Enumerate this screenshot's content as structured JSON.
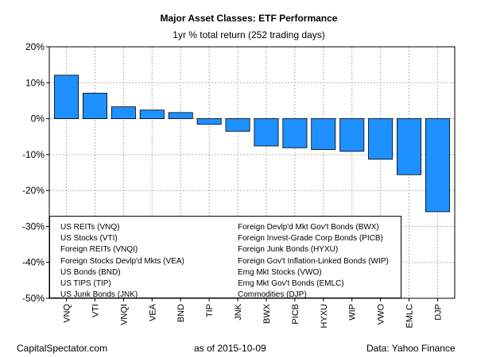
{
  "chart_data": {
    "type": "bar",
    "title": "Major Asset Classes: ETF Performance",
    "subtitle": "1yr % total return (252 trading days)",
    "categories": [
      "VNQ",
      "VTI",
      "VNQI",
      "VEA",
      "BND",
      "TIP",
      "JNK",
      "BWX",
      "PICB",
      "HYXU",
      "WIP",
      "VWO",
      "EMLC",
      "DJP"
    ],
    "values": [
      12.1,
      7.1,
      3.3,
      2.4,
      1.7,
      -1.6,
      -3.5,
      -7.6,
      -8.1,
      -8.6,
      -9.1,
      -11.3,
      -15.6,
      -25.9
    ],
    "ylim": [
      -50,
      20
    ],
    "yticks": [
      20,
      10,
      0,
      -10,
      -20,
      -30,
      -40,
      -50
    ],
    "ytick_labels": [
      "20%",
      "10%",
      "0%",
      "-10%",
      "-20%",
      "-30%",
      "-40%",
      "-50%"
    ],
    "bar_color": "#1E90FF",
    "grid": true,
    "legend_position": "bottom",
    "legend_left": [
      "US REITs (VNQ)",
      "US Stocks (VTI)",
      "Foreign REITs (VNQI)",
      "Foreign Stocks Devlp'd Mkts (VEA)",
      "US Bonds (BND)",
      "US TIPS (TIP)",
      "US Junk Bonds (JNK)"
    ],
    "legend_right": [
      "Foreign Devlp'd Mkt Gov't Bonds (BWX)",
      "Foreign Invest-Grade Corp Bonds (PICB)",
      "Foreign Junk Bonds (HYXU)",
      "Foreign Gov't Inflation-Linked Bonds (WIP)",
      "Emg Mkt Stocks (VWO)",
      "Emg Mkt Gov't Bonds (EMLC)",
      "Commodities (DJP)"
    ]
  },
  "footer": {
    "source_left": "CapitalSpectator.com",
    "date": "as of   2015-10-09",
    "source_right": "Data: Yahoo Finance"
  }
}
